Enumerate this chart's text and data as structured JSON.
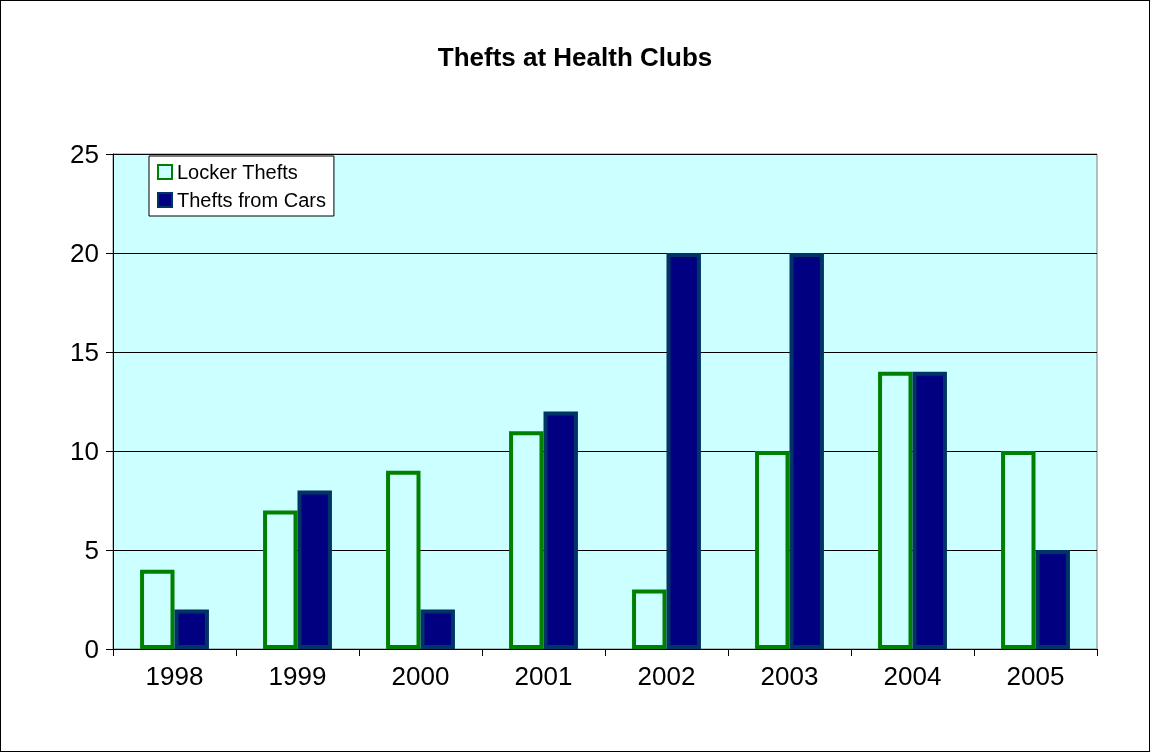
{
  "chart_data": {
    "type": "bar",
    "title": "Thefts at Health Clubs",
    "categories": [
      "1998",
      "1999",
      "2000",
      "2001",
      "2002",
      "2003",
      "2004",
      "2005"
    ],
    "series": [
      {
        "name": "Locker Thefts",
        "color": "#008000",
        "values": [
          4,
          7,
          9,
          11,
          3,
          10,
          14,
          10
        ]
      },
      {
        "name": "Thefts from Cars",
        "color": "#000080",
        "values": [
          2,
          8,
          2,
          12,
          20,
          20,
          14,
          5
        ]
      }
    ],
    "ylim": [
      0,
      25
    ],
    "yticks": [
      0,
      5,
      10,
      15,
      20,
      25
    ],
    "grid": "y",
    "legend": "top left"
  }
}
